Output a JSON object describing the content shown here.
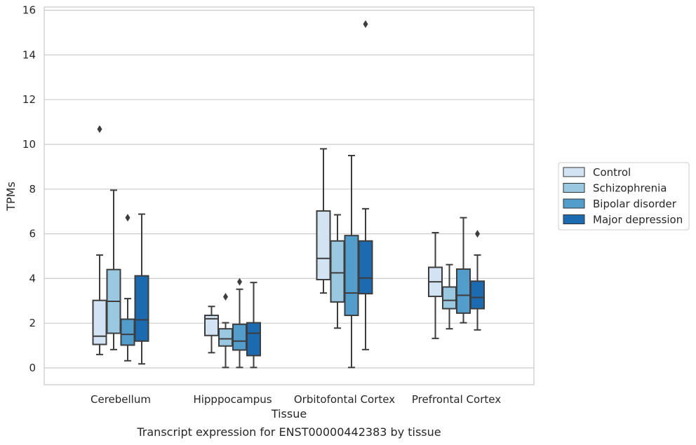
{
  "chart_data": {
    "type": "box",
    "caption": "Transcript expression for ENST00000442383 by tissue",
    "xlabel": "Tissue",
    "ylabel": "TPMs",
    "ylim": [
      -0.7,
      16.2
    ],
    "yticks": [
      0,
      2,
      4,
      6,
      8,
      10,
      12,
      14,
      16
    ],
    "grid": "horizontal",
    "legend_position": "right",
    "categories": [
      "Cerebellum",
      "Hipppocampus",
      "Orbitofontal Cortex",
      "Prefrontal Cortex"
    ],
    "series": [
      {
        "name": "Control",
        "color": "#d3e3f3",
        "boxes": [
          {
            "whislo": 0.6,
            "q1": 1.05,
            "med": 1.42,
            "q3": 3.02,
            "whishi": 5.05,
            "fliers": [
              10.68
            ]
          },
          {
            "whislo": 0.68,
            "q1": 1.45,
            "med": 2.2,
            "q3": 2.35,
            "whishi": 2.75,
            "fliers": []
          },
          {
            "whislo": 3.35,
            "q1": 3.95,
            "med": 4.9,
            "q3": 7.02,
            "whishi": 9.8,
            "fliers": []
          },
          {
            "whislo": 1.32,
            "q1": 3.2,
            "med": 3.85,
            "q3": 4.5,
            "whishi": 6.05,
            "fliers": []
          }
        ]
      },
      {
        "name": "Schizophrenia",
        "color": "#9ac8e0",
        "boxes": [
          {
            "whislo": 0.82,
            "q1": 1.55,
            "med": 2.98,
            "q3": 4.4,
            "whishi": 7.95,
            "fliers": []
          },
          {
            "whislo": 0.02,
            "q1": 0.98,
            "med": 1.3,
            "q3": 1.75,
            "whishi": 2.02,
            "fliers": [
              3.18
            ]
          },
          {
            "whislo": 1.78,
            "q1": 2.95,
            "med": 4.25,
            "q3": 5.68,
            "whishi": 6.85,
            "fliers": []
          },
          {
            "whislo": 1.75,
            "q1": 2.65,
            "med": 3.02,
            "q3": 3.62,
            "whishi": 4.62,
            "fliers": []
          }
        ]
      },
      {
        "name": "Bipolar disorder",
        "color": "#529dcc",
        "boxes": [
          {
            "whislo": 0.32,
            "q1": 1.02,
            "med": 1.5,
            "q3": 2.18,
            "whishi": 3.1,
            "fliers": [
              6.72
            ]
          },
          {
            "whislo": 0.02,
            "q1": 0.8,
            "med": 1.2,
            "q3": 1.95,
            "whishi": 3.52,
            "fliers": [
              3.85
            ]
          },
          {
            "whislo": 0.02,
            "q1": 2.35,
            "med": 3.35,
            "q3": 5.92,
            "whishi": 9.5,
            "fliers": []
          },
          {
            "whislo": 2.02,
            "q1": 2.45,
            "med": 3.25,
            "q3": 4.42,
            "whishi": 6.72,
            "fliers": []
          }
        ]
      },
      {
        "name": "Major depression",
        "color": "#1c6aaf",
        "boxes": [
          {
            "whislo": 0.18,
            "q1": 1.2,
            "med": 2.15,
            "q3": 4.12,
            "whishi": 6.88,
            "fliers": []
          },
          {
            "whislo": 0.02,
            "q1": 0.55,
            "med": 1.55,
            "q3": 2.02,
            "whishi": 3.82,
            "fliers": []
          },
          {
            "whislo": 0.82,
            "q1": 3.32,
            "med": 4.02,
            "q3": 5.68,
            "whishi": 7.12,
            "fliers": [
              15.38
            ]
          },
          {
            "whislo": 1.7,
            "q1": 2.65,
            "med": 3.15,
            "q3": 3.88,
            "whishi": 5.05,
            "fliers": [
              6.0
            ]
          }
        ]
      }
    ]
  }
}
